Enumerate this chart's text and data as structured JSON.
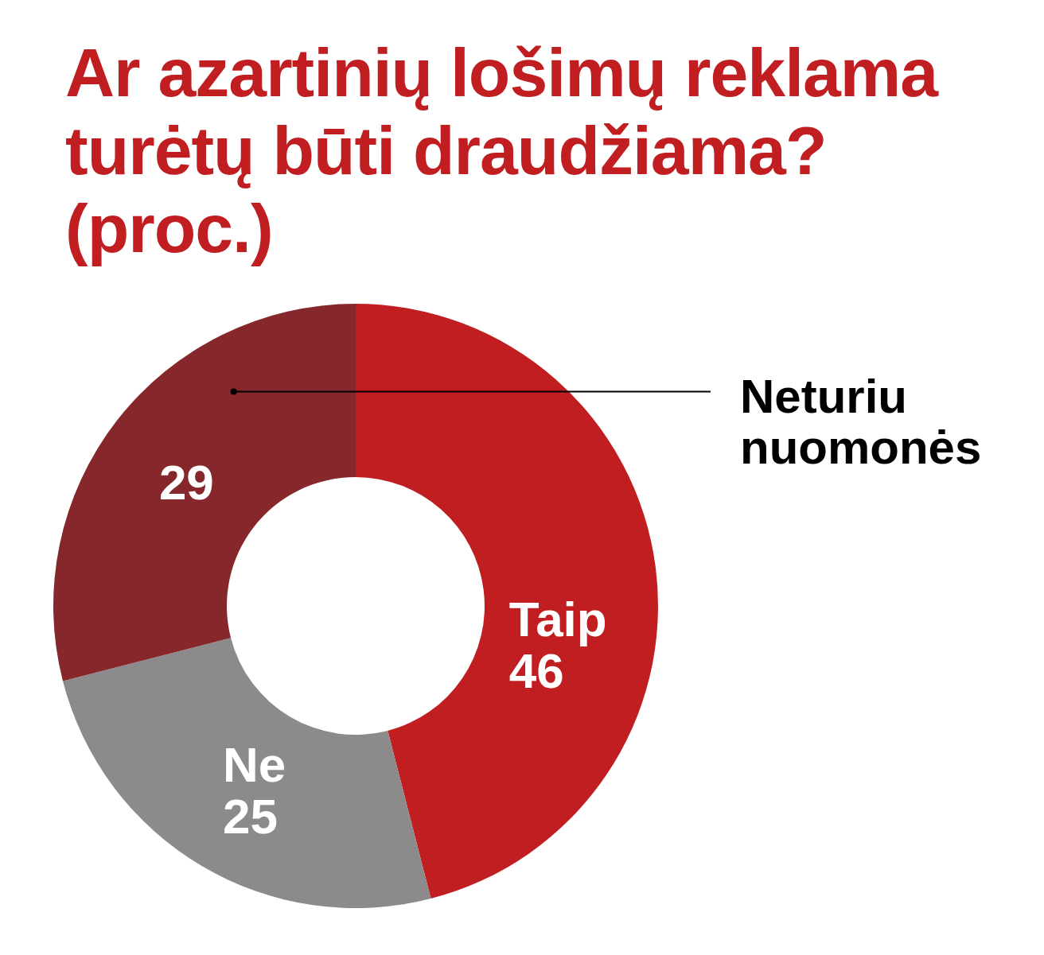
{
  "chart_data": {
    "type": "donut",
    "title": "Ar azartinių lošimų reklama turėtų būti draudžiama? (proc.)",
    "categories": [
      "Taip",
      "Ne",
      "Neturiu nuomonės"
    ],
    "values": [
      46,
      25,
      29
    ],
    "colors": [
      "#c01e21",
      "#8d8a8b",
      "#86282b"
    ],
    "data_labels": true
  }
}
